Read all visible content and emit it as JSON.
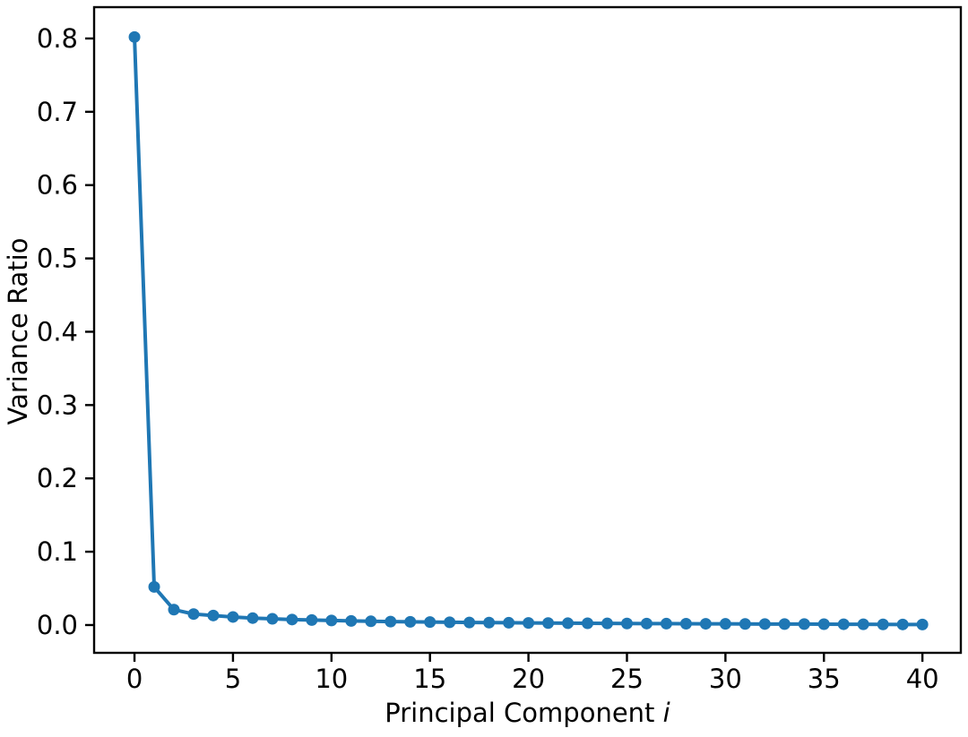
{
  "figure": {
    "xlabel_prefix": "Principal Component ",
    "xlabel_var": "i",
    "ylabel": "Variance Ratio"
  },
  "chart_data": {
    "type": "line",
    "title": "",
    "xlabel": "Principal Component i",
    "ylabel": "Variance Ratio",
    "legend": "none",
    "grid": false,
    "line_color": "#1f77b4",
    "marker": "circle",
    "x": [
      0,
      1,
      2,
      3,
      4,
      5,
      6,
      7,
      8,
      9,
      10,
      11,
      12,
      13,
      14,
      15,
      16,
      17,
      18,
      19,
      20,
      21,
      22,
      23,
      24,
      25,
      26,
      27,
      28,
      29,
      30,
      31,
      32,
      33,
      34,
      35,
      36,
      37,
      38,
      39,
      40
    ],
    "values": [
      0.802,
      0.052,
      0.021,
      0.015,
      0.013,
      0.011,
      0.0095,
      0.0085,
      0.0075,
      0.0068,
      0.0062,
      0.0056,
      0.0051,
      0.0047,
      0.0044,
      0.0041,
      0.0038,
      0.0035,
      0.0033,
      0.0031,
      0.0029,
      0.0027,
      0.0025,
      0.0024,
      0.0022,
      0.0021,
      0.002,
      0.0019,
      0.0018,
      0.0017,
      0.0016,
      0.0015,
      0.0014,
      0.0013,
      0.0013,
      0.0012,
      0.0011,
      0.001,
      0.0009,
      0.0008,
      0.0007
    ],
    "xlim": [
      -2.05,
      41.95
    ],
    "ylim": [
      -0.0379,
      0.8427
    ],
    "xticks": [
      0,
      5,
      10,
      15,
      20,
      25,
      30,
      35,
      40
    ],
    "xtick_labels": [
      "0",
      "5",
      "10",
      "15",
      "20",
      "25",
      "30",
      "35",
      "40"
    ],
    "yticks": [
      0.0,
      0.1,
      0.2,
      0.3,
      0.4,
      0.5,
      0.6,
      0.7,
      0.8
    ],
    "ytick_labels": [
      "0.0",
      "0.1",
      "0.2",
      "0.3",
      "0.4",
      "0.5",
      "0.6",
      "0.7",
      "0.8"
    ]
  }
}
